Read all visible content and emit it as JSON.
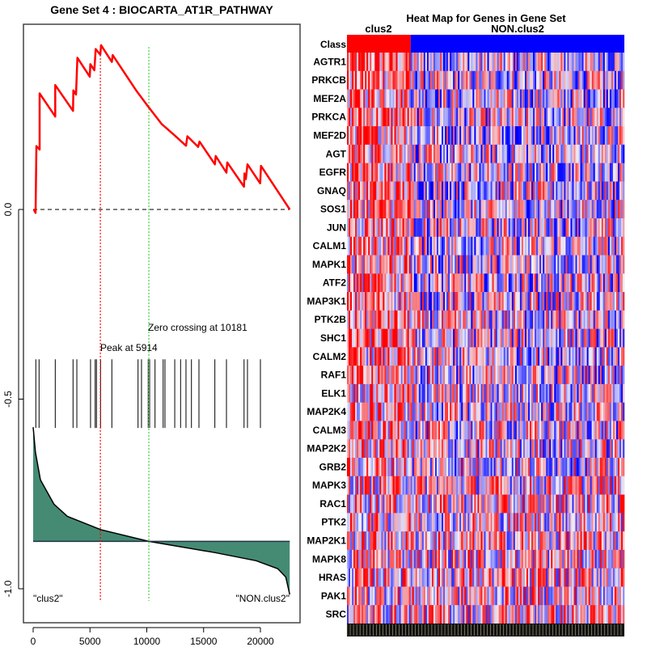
{
  "chart_data": [
    {
      "type": "line",
      "title": "Gene Set  4 : BIOCARTA_AT1R_PATHWAY",
      "xlabel": "",
      "ylabel": "",
      "xlim": [
        0,
        22700
      ],
      "ylim": [
        -1.07,
        0.46
      ],
      "x_ticks": [
        "0",
        "5000",
        "10000",
        "15000",
        "20000"
      ],
      "x_tick_values": [
        0,
        5000,
        10000,
        15000,
        20000
      ],
      "y_ticks": [
        "0.0",
        "-0.5",
        "-1.0"
      ],
      "y_tick_values": [
        0,
        -0.5,
        -1.0
      ],
      "running_es": {
        "x": [
          50,
          213,
          285,
          569,
          569,
          1943,
          1943,
          3509,
          3537,
          3772,
          3893,
          4982,
          5032,
          5388,
          5502,
          5907,
          5979,
          6925,
          6996,
          9060,
          10128,
          11317,
          12384,
          13452,
          13573,
          14520,
          14641,
          15993,
          16064,
          17010,
          17082,
          18555,
          18598,
          18719,
          18861,
          19979,
          20050,
          22584
        ],
        "y": [
          0,
          -0.009,
          0.167,
          0.158,
          0.306,
          0.245,
          0.328,
          0.26,
          0.314,
          0.303,
          0.4,
          0.35,
          0.383,
          0.367,
          0.423,
          0.408,
          0.433,
          0.389,
          0.407,
          0.314,
          0.271,
          0.225,
          0.197,
          0.168,
          0.193,
          0.165,
          0.179,
          0.119,
          0.141,
          0.097,
          0.124,
          0.06,
          0.095,
          0.08,
          0.119,
          0.069,
          0.115,
          0
        ]
      },
      "hit_ranks": [
        235,
        520,
        1945,
        3510,
        3845,
        5050,
        5460,
        5570,
        5930,
        6925,
        9230,
        9535,
        10125,
        10250,
        10725,
        11440,
        11600,
        12460,
        12975,
        13450,
        13930,
        14590,
        15990,
        17010,
        18560,
        18860,
        20000
      ],
      "hit_band": [
        -0.395,
        -0.576
      ],
      "ranked_metric": {
        "baseline": -0.875,
        "x": [
          0,
          200,
          640,
          1830,
          3010,
          5930,
          10180,
          16060,
          19620,
          21520,
          22230,
          22580
        ],
        "y": [
          -0.574,
          -0.64,
          -0.713,
          -0.777,
          -0.809,
          -0.844,
          -0.875,
          -0.905,
          -0.926,
          -0.947,
          -0.969,
          -1.015
        ]
      },
      "peak": {
        "x": 5914,
        "label": "Peak at 5914"
      },
      "zero_crossing": {
        "x": 10181,
        "label": "Zero crossing at 10181"
      },
      "left_class_label": "\"clus2\"",
      "right_class_label": "\"NON.clus2\"",
      "colors": {
        "es": "#ff0000",
        "peak": "#ff0000",
        "zero": "#66dd66",
        "metric_fill": "#458b74"
      }
    },
    {
      "type": "heatmap",
      "title": "Heat Map for Genes in Gene Set",
      "class_row_label": "Class",
      "classes": [
        {
          "name": "clus2",
          "color": "#ff0000",
          "fraction": 0.227
        },
        {
          "name": "NON.clus2",
          "color": "#0000ff",
          "fraction": 0.773
        }
      ],
      "genes": [
        "AGTR1",
        "PRKCB",
        "MEF2A",
        "PRKCA",
        "MEF2D",
        "AGT",
        "EGFR",
        "GNAQ",
        "SOS1",
        "JUN",
        "CALM1",
        "MAPK1",
        "ATF2",
        "MAP3K1",
        "PTK2B",
        "SHC1",
        "CALM2",
        "RAF1",
        "ELK1",
        "MAP2K4",
        "CALM3",
        "MAP2K2",
        "GRB2",
        "MAPK3",
        "RAC1",
        "PTK2",
        "MAP2K1",
        "MAPK8",
        "HRAS",
        "PAK1",
        "SRC"
      ],
      "colors": {
        "high": "#ff0000",
        "mid": "#f0f0f8",
        "low": "#0000ff"
      }
    }
  ]
}
